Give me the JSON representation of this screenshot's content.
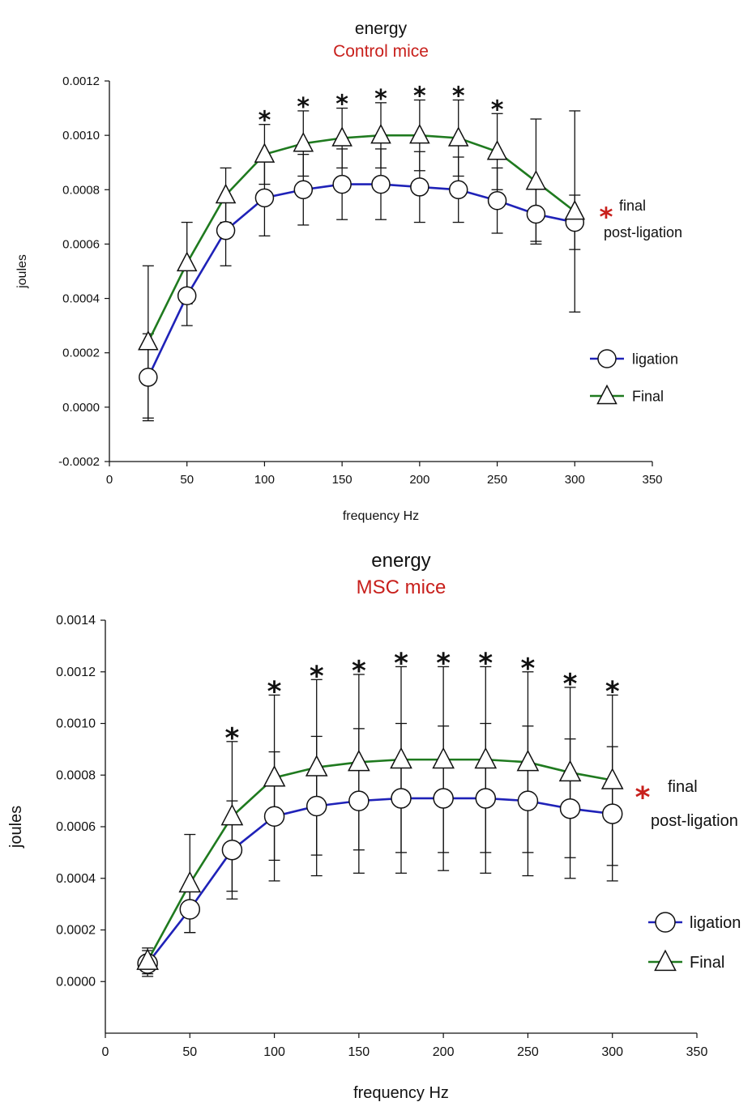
{
  "colors": {
    "ligation": "#1f22b8",
    "final": "#1f7a1f",
    "accent_red": "#c8201c",
    "marker_fill": "#ffffff",
    "axis": "#111111"
  },
  "chart_data": [
    {
      "type": "line",
      "title": "energy",
      "subtitle": "Control mice",
      "xlabel": "frequency Hz",
      "ylabel": "joules",
      "xlim": [
        0,
        350
      ],
      "ylim": [
        -0.0002,
        0.0012
      ],
      "x_ticks": [
        0,
        50,
        100,
        150,
        200,
        250,
        300,
        350
      ],
      "x_tick_labels": [
        "0",
        "50",
        "100",
        "150",
        "200",
        "250",
        "300",
        "350"
      ],
      "y_ticks": [
        -0.0002,
        0,
        0.0002,
        0.0004,
        0.0006,
        0.0008,
        0.001,
        0.0012
      ],
      "y_tick_labels": [
        "-0.0002",
        "0.0000",
        "0.0002",
        "0.0004",
        "0.0006",
        "0.0008",
        "0.0010",
        "0.0012"
      ],
      "x": [
        25,
        50,
        75,
        100,
        125,
        150,
        175,
        200,
        225,
        250,
        275,
        300
      ],
      "series": [
        {
          "name": "ligation",
          "marker": "circle",
          "values": [
            0.00011,
            0.00041,
            0.00065,
            0.00077,
            0.0008,
            0.00082,
            0.00082,
            0.00081,
            0.0008,
            0.00076,
            0.00071,
            0.00068
          ],
          "error": [
            0.00016,
            0.00011,
            0.00013,
            0.00014,
            0.00013,
            0.00013,
            0.00013,
            0.00013,
            0.00012,
            0.00012,
            0.0001,
            0.0001
          ]
        },
        {
          "name": "Final",
          "marker": "triangle",
          "values": [
            0.00024,
            0.00053,
            0.00078,
            0.00093,
            0.00097,
            0.00099,
            0.001,
            0.001,
            0.00099,
            0.00094,
            0.00083,
            0.00072
          ],
          "error": [
            0.00028,
            0.00015,
            0.0001,
            0.00011,
            0.00012,
            0.00011,
            0.00012,
            0.00013,
            0.00014,
            0.00014,
            0.00023,
            0.00037
          ]
        }
      ],
      "significance_x": [
        100,
        125,
        150,
        175,
        200,
        225,
        250
      ],
      "significance_symbol": "*",
      "annotation": {
        "symbol": "*",
        "line1": "final",
        "line2": "post-ligation"
      },
      "legend": {
        "position": "right",
        "items": [
          "ligation",
          "Final"
        ]
      }
    },
    {
      "type": "line",
      "title": "energy",
      "subtitle": "MSC mice",
      "xlabel": "frequency Hz",
      "ylabel": "joules",
      "xlim": [
        0,
        350
      ],
      "ylim": [
        -0.0002,
        0.0014
      ],
      "x_ticks": [
        0,
        50,
        100,
        150,
        200,
        250,
        300,
        350
      ],
      "x_tick_labels": [
        "0",
        "50",
        "100",
        "150",
        "200",
        "250",
        "300",
        "350"
      ],
      "y_ticks": [
        0,
        0.0002,
        0.0004,
        0.0006,
        0.0008,
        0.001,
        0.0012,
        0.0014
      ],
      "y_tick_labels": [
        "0.0000",
        "0.0002",
        "0.0004",
        "0.0006",
        "0.0008",
        "0.0010",
        "0.0012",
        "0.0014"
      ],
      "x": [
        25,
        50,
        75,
        100,
        125,
        150,
        175,
        200,
        225,
        250,
        275,
        300
      ],
      "series": [
        {
          "name": "ligation",
          "marker": "circle",
          "values": [
            7e-05,
            0.00028,
            0.00051,
            0.00064,
            0.00068,
            0.0007,
            0.00071,
            0.00071,
            0.00071,
            0.0007,
            0.00067,
            0.00065
          ],
          "error": [
            5e-05,
            9e-05,
            0.00019,
            0.00025,
            0.00027,
            0.00028,
            0.00029,
            0.00028,
            0.00029,
            0.00029,
            0.00027,
            0.00026
          ]
        },
        {
          "name": "Final",
          "marker": "triangle",
          "values": [
            8e-05,
            0.00038,
            0.00064,
            0.00079,
            0.00083,
            0.00085,
            0.00086,
            0.00086,
            0.00086,
            0.00085,
            0.00081,
            0.00078
          ],
          "error": [
            5e-05,
            0.00019,
            0.00029,
            0.00032,
            0.00034,
            0.00034,
            0.00036,
            0.00036,
            0.00036,
            0.00035,
            0.00033,
            0.00033
          ]
        }
      ],
      "significance_x": [
        75,
        100,
        125,
        150,
        175,
        200,
        225,
        250,
        275,
        300
      ],
      "significance_symbol": "*",
      "annotation": {
        "symbol": "*",
        "line1": "final",
        "line2": "post-ligation"
      },
      "legend": {
        "position": "right",
        "items": [
          "ligation",
          "Final"
        ]
      }
    }
  ]
}
